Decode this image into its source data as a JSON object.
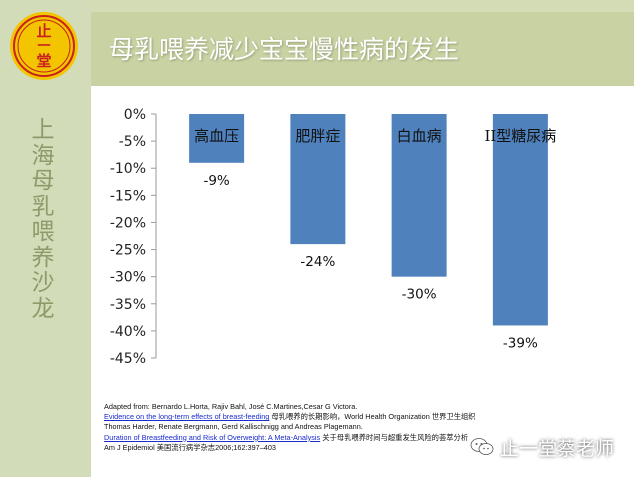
{
  "slide": {
    "title": "母乳喂养减少宝宝慢性病的发生",
    "sidebar_vertical_text": [
      "上",
      "海",
      "母",
      "乳",
      "喂",
      "养",
      "沙",
      "龙"
    ],
    "logo_text": [
      "止",
      "一",
      "堂"
    ]
  },
  "chart_data": {
    "type": "bar",
    "title": "",
    "categories": [
      "高血压",
      "肥胖症",
      "白血病",
      "II型糖尿病"
    ],
    "values": [
      -9,
      -24,
      -30,
      -39
    ],
    "value_labels": [
      "-9%",
      "-24%",
      "-30%",
      "-39%"
    ],
    "ylim": [
      -45,
      0
    ],
    "yticks": [
      "0%",
      "-5%",
      "-10%",
      "-15%",
      "-20%",
      "-25%",
      "-30%",
      "-35%",
      "-40%",
      "-45%"
    ],
    "ytick_values": [
      0,
      -5,
      -10,
      -15,
      -20,
      -25,
      -30,
      -35,
      -40,
      -45
    ],
    "bar_color": "#4f81bd",
    "grid": false
  },
  "references": {
    "line1": "Adapted from: Bernardo L.Horta, Rajiv Bahl, José C.Martines,Cesar G Victora.",
    "line2_link": "Evidence on the long-term effects of breast-feeding",
    "line2_rest": " 母乳喂养的长期影响，World Health Organization 世界卫生组织",
    "line3": "Thomas Harder, Renate Bergmann, Gerd Kallischnigg and Andreas Plagemann.",
    "line4_link": "Duration of Breastfeeding and Risk of Overweight: A Meta-Analysis",
    "line4_rest": " 关于母乳喂养时间与超重发生风险的荟萃分析",
    "line5": "Am J Epidemiol 美国流行病学杂志2006;162:397–403"
  },
  "watermark": {
    "text": "止一堂蔡老师"
  },
  "colors": {
    "sidebar": "#d3dcb8",
    "title_bar": "#c8d2a2",
    "logo_red": "#c8201e",
    "logo_yellow": "#f2c500"
  }
}
